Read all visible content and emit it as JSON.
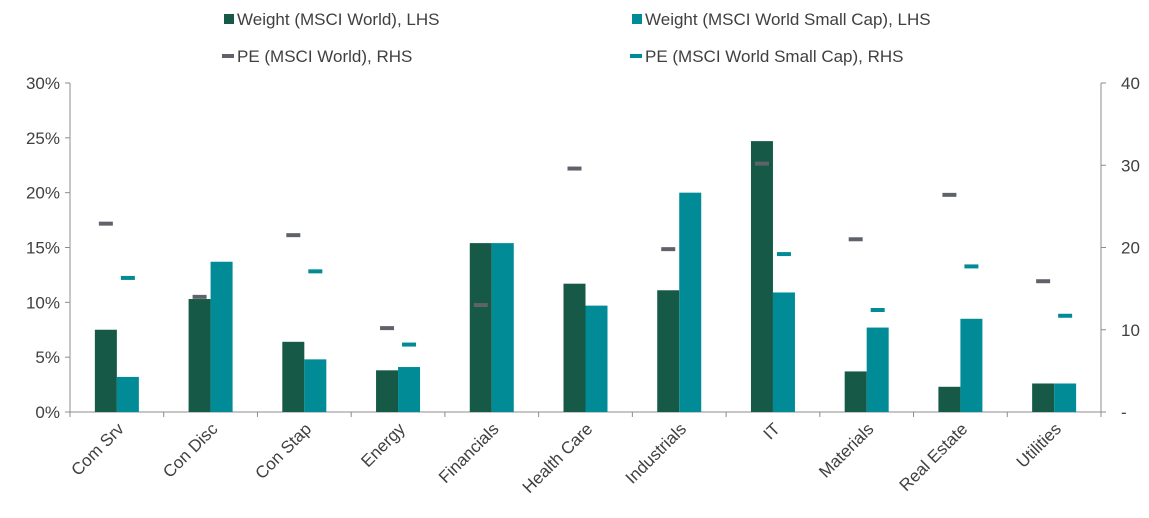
{
  "chart_data": {
    "type": "bar",
    "categories": [
      "Com Srv",
      "Con Disc",
      "Con Stap",
      "Energy",
      "Financials",
      "Health Care",
      "Industrials",
      "IT",
      "Materials",
      "Real Estate",
      "Utilities"
    ],
    "series": [
      {
        "name": "Weight (MSCI World), LHS",
        "type": "bar",
        "axis": "left",
        "color": "#155946",
        "values": [
          7.5,
          10.3,
          6.4,
          3.8,
          15.4,
          11.7,
          11.1,
          24.7,
          3.7,
          2.3,
          2.6
        ]
      },
      {
        "name": "Weight (MSCI World Small Cap), LHS",
        "type": "bar",
        "axis": "left",
        "color": "#008b96",
        "values": [
          3.2,
          13.7,
          4.8,
          4.1,
          15.4,
          9.7,
          20.0,
          10.9,
          7.7,
          8.5,
          2.6
        ]
      },
      {
        "name": "PE (MSCI World), RHS",
        "type": "marker",
        "axis": "right",
        "color": "#5f6369",
        "values": [
          22.9,
          14.0,
          21.5,
          10.2,
          13.0,
          29.6,
          19.8,
          30.2,
          21.0,
          26.4,
          15.9
        ]
      },
      {
        "name": "PE (MSCI World Small Cap), RHS",
        "type": "marker",
        "axis": "right",
        "color": "#008b96",
        "values": [
          16.3,
          15.2,
          17.1,
          8.2,
          11.9,
          6.1,
          14.4,
          19.2,
          12.4,
          17.7,
          11.7
        ]
      }
    ],
    "y_left": {
      "range": [
        0,
        30
      ],
      "ticks": [
        "0%",
        "5%",
        "10%",
        "15%",
        "20%",
        "25%",
        "30%"
      ]
    },
    "y_right": {
      "range": [
        0,
        40
      ],
      "ticks": [
        "-",
        "10",
        "20",
        "30",
        "40"
      ]
    },
    "legend_position": "top",
    "grid": false
  }
}
